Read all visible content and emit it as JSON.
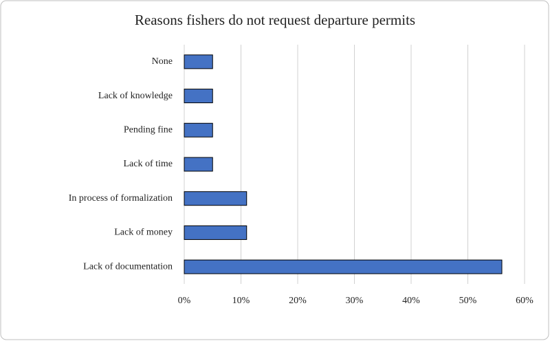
{
  "chart_data": {
    "type": "hbar",
    "title": "Reasons fishers do not request departure permits",
    "categories": [
      "None",
      "Lack of knowledge",
      "Pending fine",
      "Lack of time",
      "In process of formalization",
      "Lack of money",
      "Lack of documentation"
    ],
    "values": [
      5,
      5,
      5,
      5,
      11,
      11,
      56
    ],
    "color": "#4472c4",
    "xlim": [
      0,
      60
    ],
    "xticks": [
      {
        "value": 0,
        "label": "0%"
      },
      {
        "value": 10,
        "label": "10%"
      },
      {
        "value": 20,
        "label": "20%"
      },
      {
        "value": 30,
        "label": "30%"
      },
      {
        "value": 40,
        "label": "40%"
      },
      {
        "value": 50,
        "label": "50%"
      },
      {
        "value": 60,
        "label": "60%"
      }
    ],
    "grid": true
  }
}
